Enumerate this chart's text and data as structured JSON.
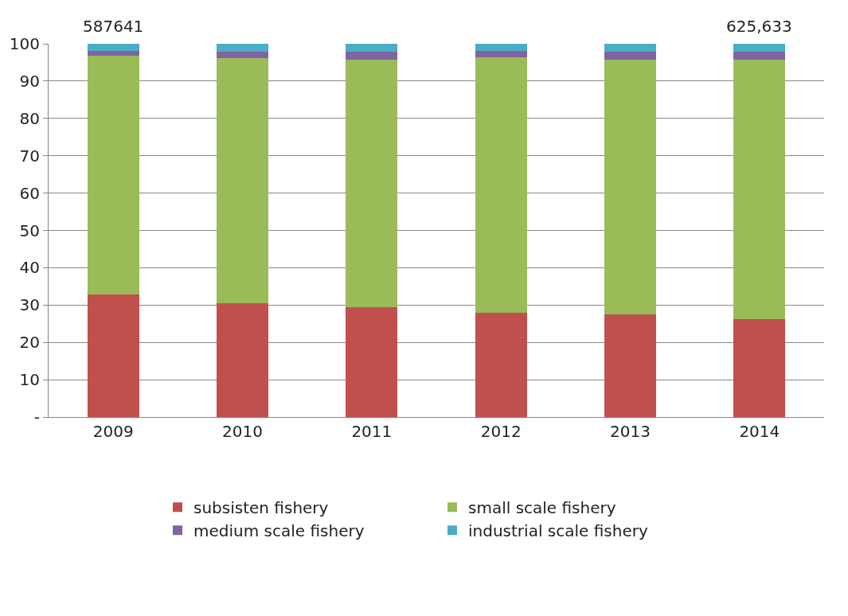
{
  "chart_data": {
    "type": "bar",
    "stacked": true,
    "categories": [
      "2009",
      "2010",
      "2011",
      "2012",
      "2013",
      "2014"
    ],
    "series": [
      {
        "name": "subsisten fishery",
        "color": "#c0504d",
        "values": [
          32.9,
          30.4,
          29.4,
          28.0,
          27.4,
          26.3
        ]
      },
      {
        "name": "small scale fishery",
        "color": "#9bbb59",
        "values": [
          63.8,
          65.7,
          66.3,
          68.4,
          68.3,
          69.4
        ]
      },
      {
        "name": "medium scale fishery",
        "color": "#8064a2",
        "values": [
          1.3,
          1.7,
          2.1,
          1.6,
          2.1,
          2.1
        ]
      },
      {
        "name": "industrial scale fishery",
        "color": "#4bacc6",
        "values": [
          2.0,
          2.2,
          2.2,
          2.0,
          2.2,
          2.2
        ]
      }
    ],
    "ylim": [
      0,
      100
    ],
    "yticks": [
      {
        "value": 0,
        "label": "-"
      },
      10,
      20,
      30,
      40,
      50,
      60,
      70,
      80,
      90,
      100
    ],
    "grid": "y",
    "legend": "bottom",
    "annotations": [
      {
        "text": "587641",
        "x": "2009",
        "y": 100
      },
      {
        "text": "625,633",
        "x": "2014",
        "y": 100
      }
    ]
  }
}
